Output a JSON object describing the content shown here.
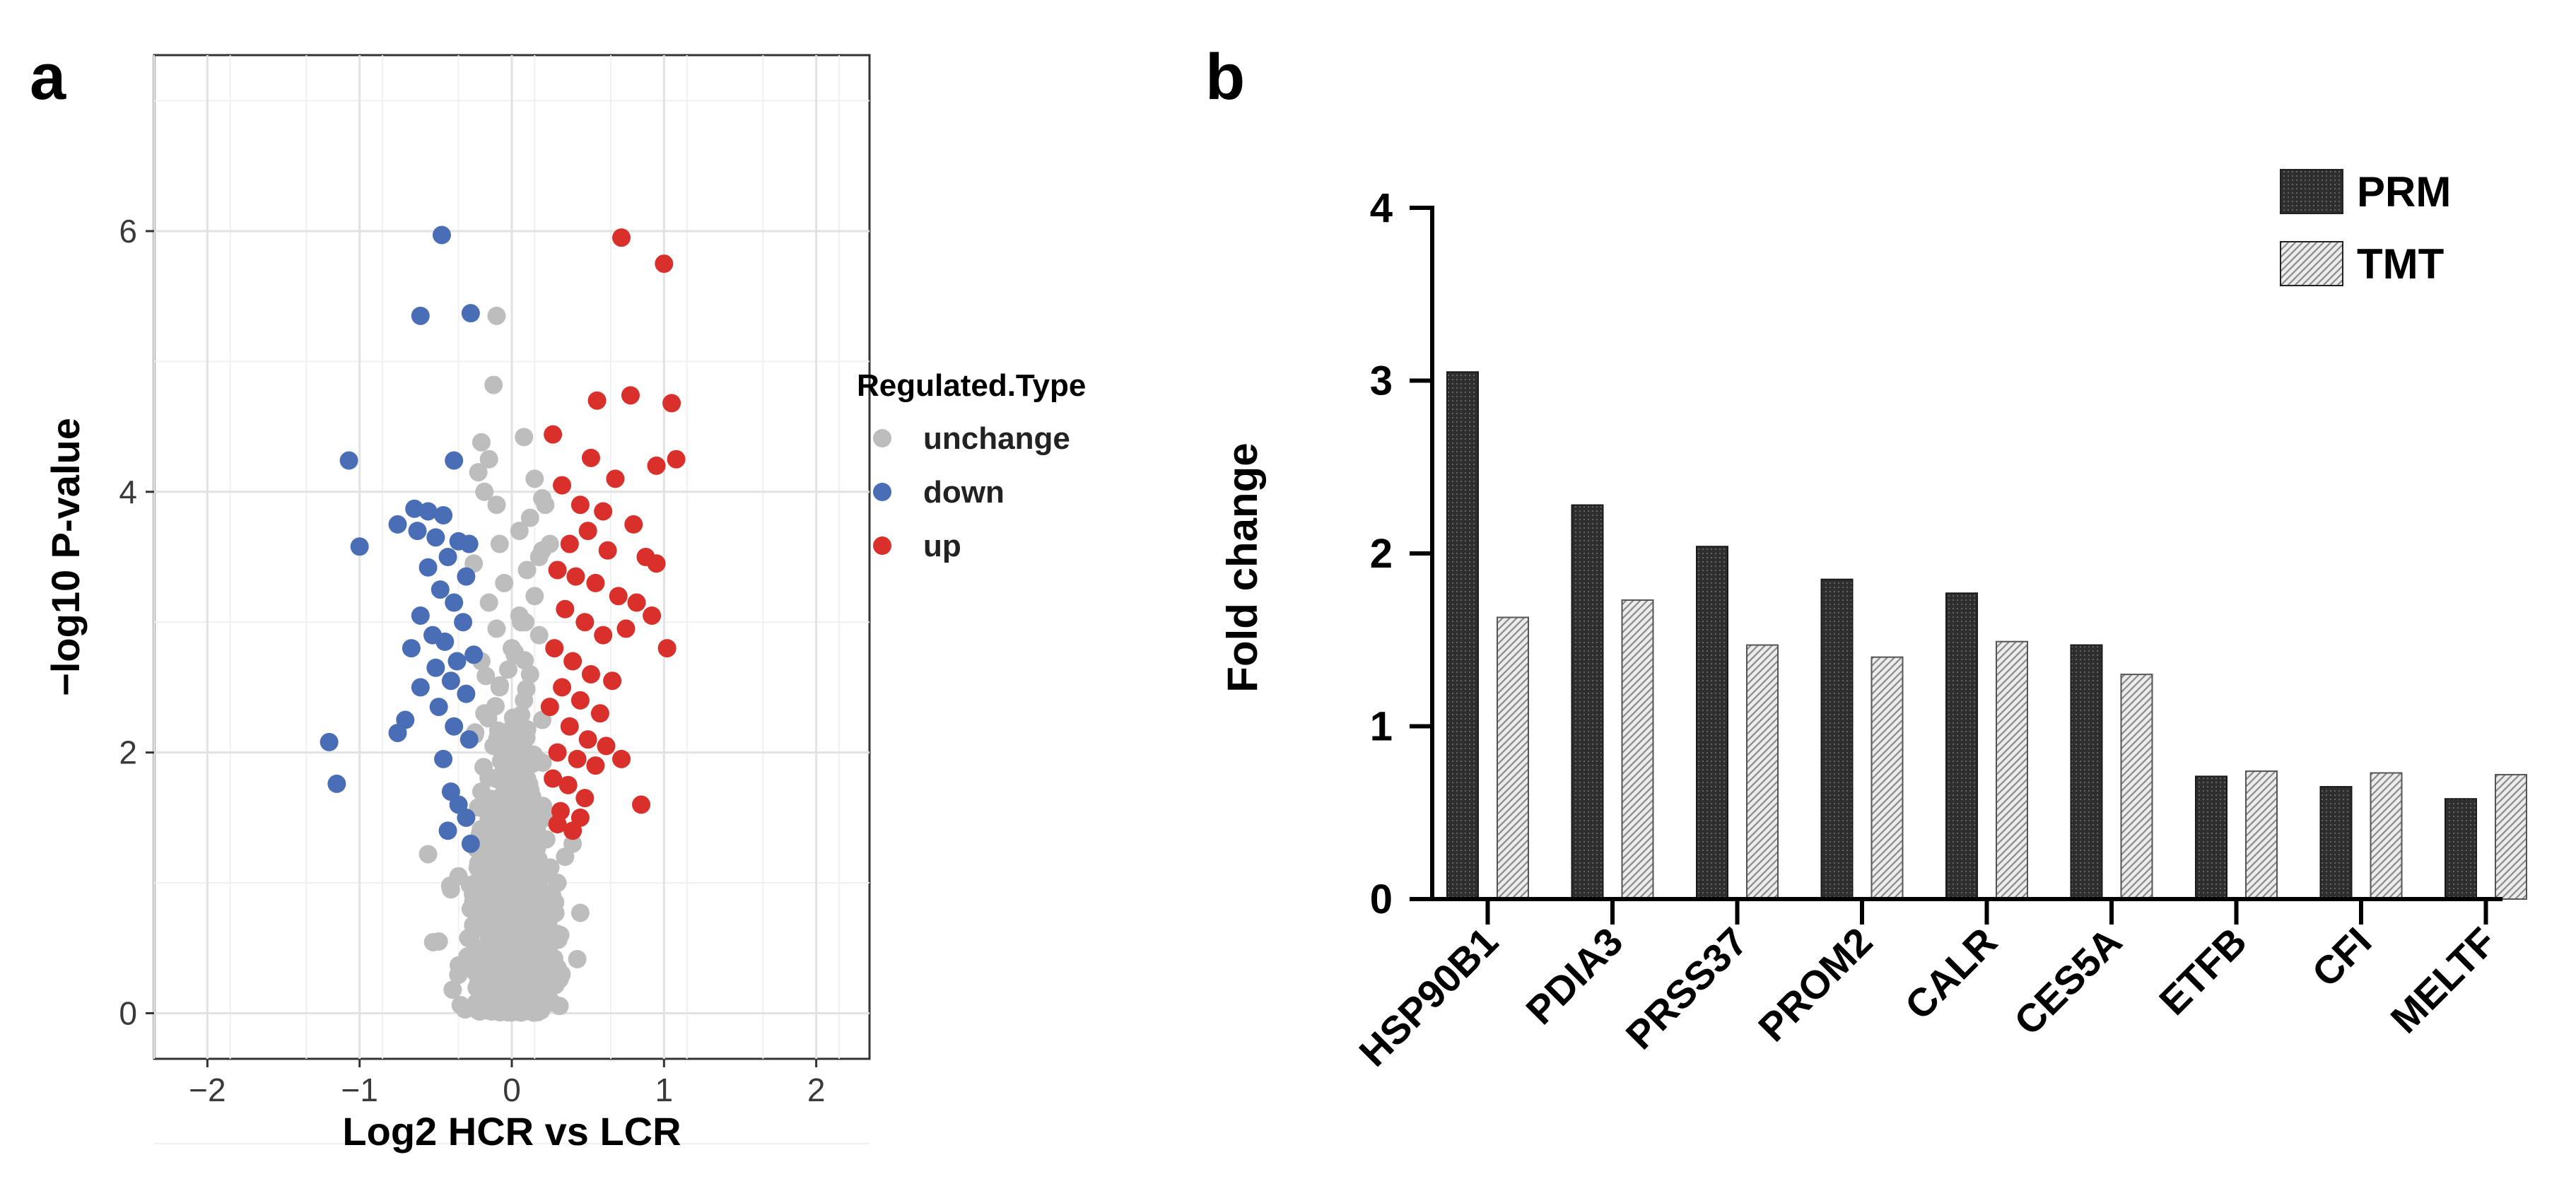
{
  "panels": {
    "a": {
      "label": "a",
      "chart_data": {
        "type": "scatter",
        "title": "",
        "xlabel": "Log2 HCR vs LCR",
        "ylabel": "−log10 P-value",
        "xlim": [
          -2.35,
          2.35
        ],
        "ylim": [
          -0.35,
          7.35
        ],
        "xticks": [
          -2,
          -1,
          0,
          1,
          2
        ],
        "xtick_labels": [
          "−2",
          "−1",
          "0",
          "1",
          "2"
        ],
        "yticks": [
          0,
          2,
          4,
          6
        ],
        "ytick_labels": [
          "0",
          "2",
          "4",
          "6"
        ],
        "grid": true,
        "legend": {
          "title": "Regulated.Type",
          "position": "right",
          "entries": [
            {
              "label": "unchange",
              "color": "#bdbdbd"
            },
            {
              "label": "down",
              "color": "#4a6eb5"
            },
            {
              "label": "up",
              "color": "#d9302c"
            }
          ]
        },
        "series": [
          {
            "name": "up",
            "color": "#d9302c",
            "points": [
              [
                0.72,
                5.95
              ],
              [
                1.0,
                5.75
              ],
              [
                0.56,
                4.7
              ],
              [
                0.78,
                4.74
              ],
              [
                1.05,
                4.68
              ],
              [
                0.27,
                4.44
              ],
              [
                0.52,
                4.26
              ],
              [
                0.68,
                4.1
              ],
              [
                0.95,
                4.2
              ],
              [
                1.08,
                4.25
              ],
              [
                0.33,
                4.05
              ],
              [
                0.45,
                3.9
              ],
              [
                0.6,
                3.85
              ],
              [
                0.8,
                3.75
              ],
              [
                0.38,
                3.6
              ],
              [
                0.5,
                3.7
              ],
              [
                0.63,
                3.55
              ],
              [
                0.88,
                3.5
              ],
              [
                0.95,
                3.45
              ],
              [
                0.3,
                3.4
              ],
              [
                0.42,
                3.35
              ],
              [
                0.55,
                3.3
              ],
              [
                0.7,
                3.2
              ],
              [
                0.82,
                3.15
              ],
              [
                0.92,
                3.05
              ],
              [
                0.35,
                3.1
              ],
              [
                0.48,
                3.0
              ],
              [
                0.6,
                2.9
              ],
              [
                0.75,
                2.95
              ],
              [
                1.02,
                2.8
              ],
              [
                0.28,
                2.8
              ],
              [
                0.4,
                2.7
              ],
              [
                0.52,
                2.6
              ],
              [
                0.66,
                2.55
              ],
              [
                0.33,
                2.5
              ],
              [
                0.45,
                2.4
              ],
              [
                0.58,
                2.3
              ],
              [
                0.25,
                2.35
              ],
              [
                0.38,
                2.2
              ],
              [
                0.5,
                2.1
              ],
              [
                0.62,
                2.05
              ],
              [
                0.3,
                2.0
              ],
              [
                0.43,
                1.95
              ],
              [
                0.55,
                1.9
              ],
              [
                0.72,
                1.95
              ],
              [
                0.27,
                1.8
              ],
              [
                0.37,
                1.75
              ],
              [
                0.48,
                1.65
              ],
              [
                0.85,
                1.6
              ],
              [
                0.32,
                1.55
              ],
              [
                0.45,
                1.5
              ],
              [
                0.3,
                1.45
              ],
              [
                0.4,
                1.4
              ]
            ]
          },
          {
            "name": "down",
            "color": "#4a6eb5",
            "points": [
              [
                -0.46,
                5.97
              ],
              [
                -0.6,
                5.35
              ],
              [
                -0.27,
                5.37
              ],
              [
                -1.07,
                4.24
              ],
              [
                -0.38,
                4.24
              ],
              [
                -0.64,
                3.87
              ],
              [
                -0.55,
                3.85
              ],
              [
                -0.45,
                3.82
              ],
              [
                -0.75,
                3.75
              ],
              [
                -0.62,
                3.7
              ],
              [
                -0.5,
                3.65
              ],
              [
                -0.35,
                3.62
              ],
              [
                -1.0,
                3.58
              ],
              [
                -0.28,
                3.6
              ],
              [
                -0.42,
                3.5
              ],
              [
                -0.55,
                3.42
              ],
              [
                -0.3,
                3.35
              ],
              [
                -0.47,
                3.25
              ],
              [
                -0.38,
                3.15
              ],
              [
                -0.6,
                3.05
              ],
              [
                -0.32,
                3.0
              ],
              [
                -0.52,
                2.9
              ],
              [
                -0.44,
                2.85
              ],
              [
                -0.66,
                2.8
              ],
              [
                -0.36,
                2.7
              ],
              [
                -0.25,
                2.75
              ],
              [
                -0.5,
                2.65
              ],
              [
                -0.6,
                2.5
              ],
              [
                -0.4,
                2.55
              ],
              [
                -0.3,
                2.45
              ],
              [
                -0.48,
                2.35
              ],
              [
                -0.7,
                2.25
              ],
              [
                -0.75,
                2.15
              ],
              [
                -0.38,
                2.2
              ],
              [
                -0.28,
                2.1
              ],
              [
                -0.45,
                1.95
              ],
              [
                -1.2,
                2.08
              ],
              [
                -1.15,
                1.76
              ],
              [
                -0.4,
                1.7
              ],
              [
                -0.35,
                1.6
              ],
              [
                -0.3,
                1.5
              ],
              [
                -0.42,
                1.4
              ],
              [
                -0.27,
                1.3
              ]
            ]
          },
          {
            "name": "unchange",
            "color": "#bdbdbd",
            "points": [
              [
                -0.1,
                5.35
              ],
              [
                -0.12,
                4.82
              ],
              [
                0.08,
                4.42
              ],
              [
                -0.2,
                4.38
              ],
              [
                -0.15,
                4.25
              ],
              [
                -0.22,
                4.15
              ],
              [
                0.15,
                4.1
              ],
              [
                -0.18,
                4.0
              ],
              [
                0.2,
                3.95
              ],
              [
                -0.1,
                3.9
              ],
              [
                0.12,
                3.8
              ],
              [
                0.05,
                3.7
              ],
              [
                -0.08,
                3.6
              ],
              [
                0.18,
                3.5
              ],
              [
                0.22,
                3.9
              ],
              [
                0.2,
                3.55
              ],
              [
                0.25,
                3.6
              ],
              [
                -0.25,
                3.45
              ],
              [
                0.1,
                3.4
              ],
              [
                -0.05,
                3.3
              ],
              [
                0.15,
                3.2
              ],
              [
                -0.15,
                3.15
              ],
              [
                0.05,
                3.05
              ],
              [
                -0.1,
                2.95
              ],
              [
                0.18,
                2.9
              ],
              [
                0.0,
                2.8
              ],
              [
                -0.2,
                2.7
              ],
              [
                0.12,
                2.6
              ],
              [
                -0.08,
                2.5
              ],
              [
                0.08,
                2.4
              ],
              [
                -0.18,
                2.3
              ],
              [
                0.2,
                2.25
              ],
              [
                0.02,
                2.15
              ],
              [
                -0.12,
                2.05
              ],
              [
                0.15,
                1.95
              ],
              [
                -0.05,
                1.9
              ],
              [
                0.1,
                1.8
              ],
              [
                -0.2,
                1.7
              ],
              [
                0.0,
                1.6
              ],
              [
                0.22,
                1.5
              ],
              [
                -0.15,
                1.45
              ],
              [
                0.05,
                1.35
              ],
              [
                -0.08,
                1.25
              ],
              [
                0.12,
                1.2
              ],
              [
                -0.22,
                1.15
              ],
              [
                0.18,
                1.05
              ],
              [
                0.0,
                1.0
              ],
              [
                -0.1,
                0.9
              ],
              [
                0.1,
                0.85
              ],
              [
                -0.05,
                0.75
              ],
              [
                0.05,
                0.65
              ],
              [
                -0.15,
                0.6
              ],
              [
                0.15,
                0.55
              ],
              [
                0.0,
                0.45
              ],
              [
                -0.08,
                0.35
              ],
              [
                0.08,
                0.3
              ],
              [
                0.0,
                0.2
              ],
              [
                -0.04,
                0.12
              ],
              [
                0.04,
                0.08
              ],
              [
                0.0,
                0.02
              ],
              [
                -0.55,
                1.22
              ],
              [
                -0.48,
                0.55
              ],
              [
                0.45,
                0.77
              ],
              [
                0.3,
                1.0
              ],
              [
                -0.35,
                1.05
              ],
              [
                -0.27,
                0.8
              ],
              [
                0.27,
                0.6
              ],
              [
                -0.3,
                0.4
              ],
              [
                0.3,
                0.35
              ],
              [
                -0.2,
                0.25
              ],
              [
                0.2,
                0.15
              ],
              [
                0.35,
                1.2
              ],
              [
                -0.4,
                0.95
              ],
              [
                0.4,
                1.3
              ]
            ]
          }
        ],
        "cloud": {
          "series": "unchange",
          "count": 900,
          "x_spread": 0.14,
          "p_max": 3.0
        }
      }
    },
    "b": {
      "label": "b",
      "chart_data": {
        "type": "bar",
        "title": "",
        "xlabel": "",
        "ylabel": "Fold change",
        "ylim": [
          0,
          4
        ],
        "yticks": [
          0,
          1,
          2,
          3,
          4
        ],
        "ytick_labels": [
          "0",
          "1",
          "2",
          "3",
          "4"
        ],
        "categories": [
          "HSP90B1",
          "PDIA3",
          "PRSS37",
          "PROM2",
          "CALR",
          "CES5A",
          "ETFB",
          "CFI",
          "MELTF"
        ],
        "series": [
          {
            "name": "PRM",
            "color": "#2b2b2b",
            "values": [
              3.05,
              2.28,
              2.04,
              1.85,
              1.77,
              1.47,
              0.71,
              0.65,
              0.58
            ]
          },
          {
            "name": "TMT",
            "color": "#c8c8c8",
            "values": [
              1.63,
              1.73,
              1.47,
              1.4,
              1.49,
              1.3,
              0.74,
              0.73,
              0.72
            ]
          }
        ],
        "legend": {
          "position": "top-right",
          "entries": [
            "PRM",
            "TMT"
          ]
        },
        "grid": false
      }
    }
  }
}
